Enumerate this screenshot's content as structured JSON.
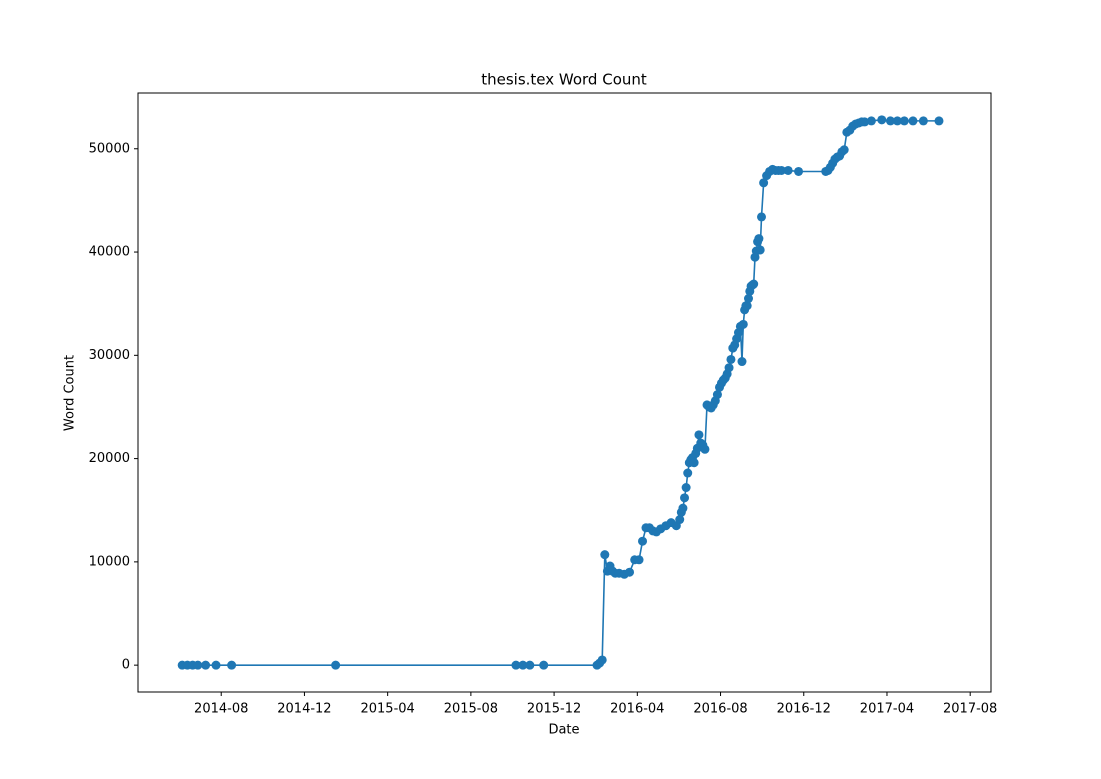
{
  "chart_data": {
    "type": "line",
    "title": "thesis.tex Word Count",
    "x_label": "Date",
    "y_label": "Word Count",
    "x": [
      "2014-06",
      "2014-06",
      "2014-06",
      "2014-06",
      "2014-07",
      "2014-07",
      "2014-08",
      "2015-01",
      "2015-10",
      "2015-10",
      "2015-10",
      "2015-11",
      "2016-02",
      "2016-02",
      "2016-02",
      "2016-02",
      "2016-02",
      "2016-02",
      "2016-02",
      "2016-02",
      "2016-03",
      "2016-03",
      "2016-03",
      "2016-03",
      "2016-04",
      "2016-04",
      "2016-04",
      "2016-04",
      "2016-04",
      "2016-04",
      "2016-05",
      "2016-05",
      "2016-05",
      "2016-05",
      "2016-06",
      "2016-06",
      "2016-06",
      "2016-06",
      "2016-06",
      "2016-06",
      "2016-06",
      "2016-06",
      "2016-06",
      "2016-06",
      "2016-06",
      "2016-06",
      "2016-06",
      "2016-07",
      "2016-07",
      "2016-07",
      "2016-07",
      "2016-07",
      "2016-07",
      "2016-07",
      "2016-07",
      "2016-07",
      "2016-07",
      "2016-08",
      "2016-08",
      "2016-08",
      "2016-08",
      "2016-08",
      "2016-08",
      "2016-08",
      "2016-08",
      "2016-08",
      "2016-08",
      "2016-08",
      "2016-09",
      "2016-09",
      "2016-09",
      "2016-09",
      "2016-09",
      "2016-09",
      "2016-09",
      "2016-09",
      "2016-09",
      "2016-09",
      "2016-09",
      "2016-09",
      "2016-09",
      "2016-09",
      "2016-09",
      "2016-09",
      "2016-10",
      "2016-10",
      "2016-10",
      "2016-10",
      "2016-10",
      "2016-10",
      "2016-10",
      "2016-11",
      "2016-11",
      "2017-01",
      "2017-01",
      "2017-01",
      "2017-01",
      "2017-01",
      "2017-01",
      "2017-01",
      "2017-01",
      "2017-01",
      "2017-02",
      "2017-02",
      "2017-02",
      "2017-02",
      "2017-02",
      "2017-02",
      "2017-02",
      "2017-03",
      "2017-03",
      "2017-04",
      "2017-04",
      "2017-04",
      "2017-05",
      "2017-05",
      "2017-06"
    ],
    "series": [
      {
        "name": "thesis.tex",
        "color": "#1f77b4",
        "values": [
          0,
          0,
          0,
          0,
          0,
          0,
          0,
          0,
          0,
          0,
          0,
          0,
          0,
          200,
          500,
          10700,
          9100,
          9600,
          9100,
          8900,
          8900,
          8800,
          9000,
          10200,
          10200,
          12000,
          13300,
          13300,
          13000,
          12900,
          13200,
          13500,
          13800,
          13500,
          14100,
          14800,
          15200,
          16200,
          17200,
          18600,
          19600,
          19900,
          20100,
          19600,
          20500,
          21000,
          22300,
          21500,
          21300,
          20900,
          25200,
          25000,
          24900,
          25200,
          25600,
          26200,
          26900,
          27300,
          27600,
          27800,
          28200,
          28800,
          29600,
          30700,
          31000,
          31600,
          32200,
          32800,
          29400,
          33000,
          34400,
          34800,
          34800,
          35500,
          36200,
          36700,
          36800,
          36900,
          39500,
          40100,
          41000,
          41300,
          40200,
          43400,
          46700,
          47400,
          47800,
          48000,
          47900,
          47900,
          47900,
          47900,
          47800,
          47800,
          47900,
          48200,
          48600,
          49000,
          49200,
          49300,
          49700,
          49900,
          51600,
          51800,
          52200,
          52400,
          52500,
          52600,
          52600,
          52700,
          52800,
          52700,
          52700,
          52700,
          52700,
          52700,
          52700
        ]
      }
    ],
    "xlim": [
      "2014-04",
      "2017-09"
    ],
    "xticks": [
      "2014-08",
      "2014-12",
      "2015-04",
      "2015-08",
      "2015-12",
      "2016-04",
      "2016-08",
      "2016-12",
      "2017-04",
      "2017-08"
    ],
    "ylim": [
      -2600,
      55400
    ],
    "yticks": [
      0,
      10000,
      20000,
      30000,
      40000,
      50000
    ]
  }
}
